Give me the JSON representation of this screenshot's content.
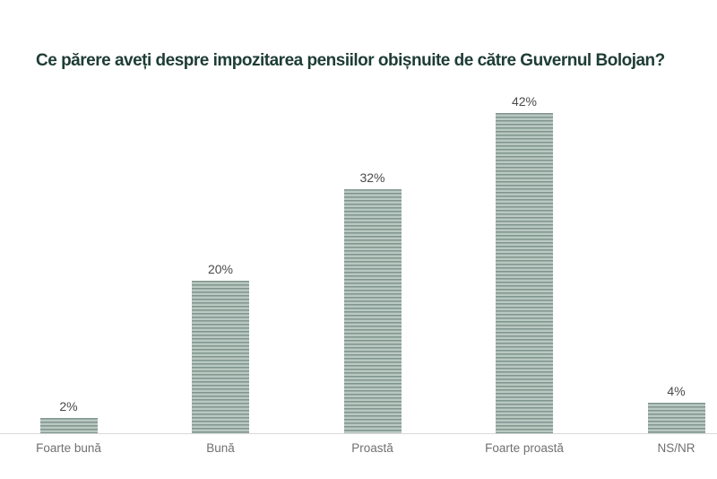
{
  "title": "Ce părere aveți despre impozitarea pensiilor obișnuite de către Guvernul Bolojan?",
  "chart_data": {
    "type": "bar",
    "title": "Ce părere aveți despre impozitarea pensiilor obișnuite de către Guvernul Bolojan?",
    "categories": [
      "Foarte bună",
      "Bună",
      "Proastă",
      "Foarte proastă",
      "NS/NR"
    ],
    "values": [
      2,
      20,
      32,
      42,
      4
    ],
    "value_labels": [
      "2%",
      "20%",
      "32%",
      "42%",
      "4%"
    ],
    "xlabel": "",
    "ylabel": "",
    "ylim": [
      0,
      45
    ],
    "grid": false,
    "legend": "none",
    "colors": {
      "bar_stripe_light": "#bac8c2",
      "bar_stripe_dark": "#7d948d",
      "title_text": "#1e3c35",
      "value_label_text": "#4a4a4a",
      "category_label_text": "#707070",
      "axis_line": "#d9d9d9",
      "background": "#ffffff"
    }
  }
}
